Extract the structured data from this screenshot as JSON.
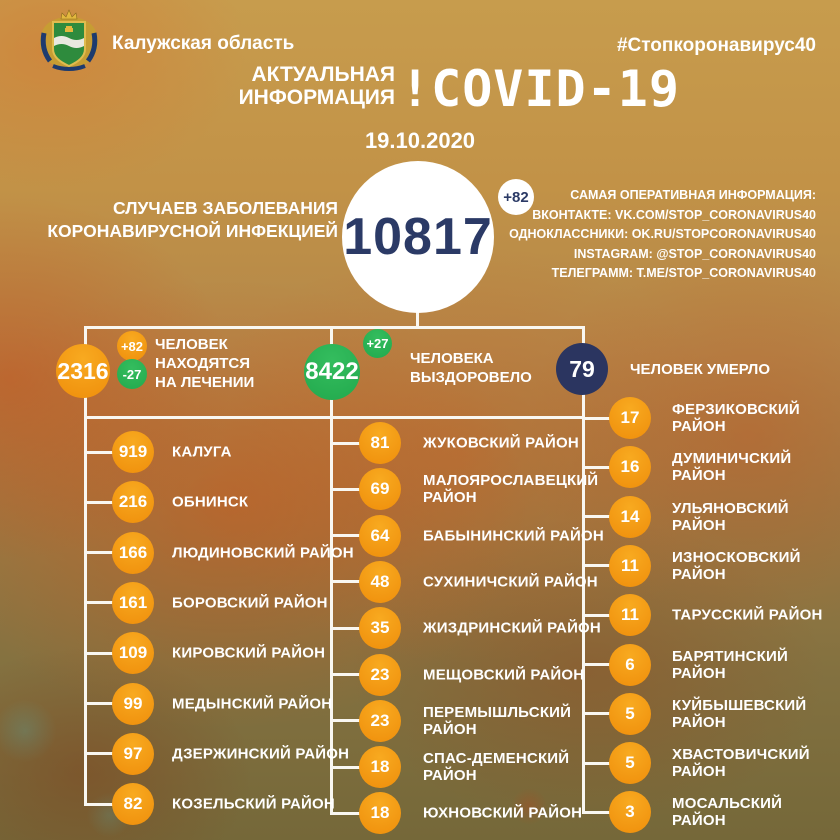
{
  "header": {
    "region_name": "Калужская область",
    "hashtag": "#Стопкоронавирус40",
    "info_label": "АКТУАЛЬНАЯ\nИНФОРМАЦИЯ",
    "covid_title": "!COVID-19",
    "date": "19.10.2020"
  },
  "total": {
    "value": "10817",
    "delta": "+82",
    "caption": "СЛУЧАЕВ ЗАБОЛЕВАНИЯ\nКОРОНАВИРУСНОЙ ИНФЕКЦИЕЙ"
  },
  "social": {
    "title": "САМАЯ ОПЕРАТИВНАЯ ИНФОРМАЦИЯ:",
    "lines": [
      "ВКОНТАКТЕ: VK.COM/STOP_CORONAVIRUS40",
      "ОДНОКЛАССНИКИ: OK.RU/STOPCORONAVIRUS40",
      "INSTAGRAM: @STOP_CORONAVIRUS40",
      "ТЕЛЕГРАММ: T.ME/STOP_CORONAVIRUS40"
    ]
  },
  "stats": [
    {
      "value": "2316",
      "circle_color": "orange",
      "badges": [
        {
          "text": "+82",
          "color": "orange"
        },
        {
          "text": "-27",
          "color": "green"
        }
      ],
      "label": "ЧЕЛОВЕК\nНАХОДЯТСЯ\nНА ЛЕЧЕНИИ"
    },
    {
      "value": "8422",
      "circle_color": "green",
      "badges": [
        {
          "text": "+27",
          "color": "green"
        }
      ],
      "label": "ЧЕЛОВЕКА\nВЫЗДОРОВЕЛО"
    },
    {
      "value": "79",
      "circle_color": "navy",
      "badges": [],
      "label": "ЧЕЛОВЕК УМЕРЛО"
    }
  ],
  "districts": {
    "column1": [
      {
        "value": "919",
        "label": "КАЛУГА"
      },
      {
        "value": "216",
        "label": "ОБНИНСК"
      },
      {
        "value": "166",
        "label": "ЛЮДИНОВСКИЙ РАЙОН"
      },
      {
        "value": "161",
        "label": "БОРОВСКИЙ РАЙОН"
      },
      {
        "value": "109",
        "label": "КИРОВСКИЙ РАЙОН"
      },
      {
        "value": "99",
        "label": "МЕДЫНСКИЙ РАЙОН"
      },
      {
        "value": "97",
        "label": "ДЗЕРЖИНСКИЙ РАЙОН"
      },
      {
        "value": "82",
        "label": "КОЗЕЛЬСКИЙ РАЙОН"
      }
    ],
    "column2": [
      {
        "value": "81",
        "label": "ЖУКОВСКИЙ РАЙОН"
      },
      {
        "value": "69",
        "label": "МАЛОЯРОСЛАВЕЦКИЙ\nРАЙОН"
      },
      {
        "value": "64",
        "label": "БАБЫНИНСКИЙ РАЙОН"
      },
      {
        "value": "48",
        "label": "СУХИНИЧСКИЙ РАЙОН"
      },
      {
        "value": "35",
        "label": "ЖИЗДРИНСКИЙ РАЙОН"
      },
      {
        "value": "23",
        "label": "МЕЩОВСКИЙ РАЙОН"
      },
      {
        "value": "23",
        "label": "ПЕРЕМЫШЛЬСКИЙ\nРАЙОН"
      },
      {
        "value": "18",
        "label": "СПАС-ДЕМЕНСКИЙ\nРАЙОН"
      },
      {
        "value": "18",
        "label": "ЮХНОВСКИЙ РАЙОН"
      }
    ],
    "column3": [
      {
        "value": "17",
        "label": "ФЕРЗИКОВСКИЙ РАЙОН"
      },
      {
        "value": "16",
        "label": "ДУМИНИЧСКИЙ РАЙОН"
      },
      {
        "value": "14",
        "label": "УЛЬЯНОВСКИЙ РАЙОН"
      },
      {
        "value": "11",
        "label": "ИЗНОСКОВСКИЙ РАЙОН"
      },
      {
        "value": "11",
        "label": "ТАРУССКИЙ РАЙОН"
      },
      {
        "value": "6",
        "label": "БАРЯТИНСКИЙ РАЙОН"
      },
      {
        "value": "5",
        "label": "КУЙБЫШЕВСКИЙ РАЙОН"
      },
      {
        "value": "5",
        "label": "ХВАСТОВИЧСКИЙ РАЙОН"
      },
      {
        "value": "3",
        "label": "МОСАЛЬСКИЙ РАЙОН"
      }
    ]
  },
  "colors": {
    "accent_orange": "#F09410",
    "accent_green": "#2DB457",
    "accent_navy": "#2B3560",
    "line_white": "#F9F7F1",
    "background_tan": "#C79C4D"
  }
}
